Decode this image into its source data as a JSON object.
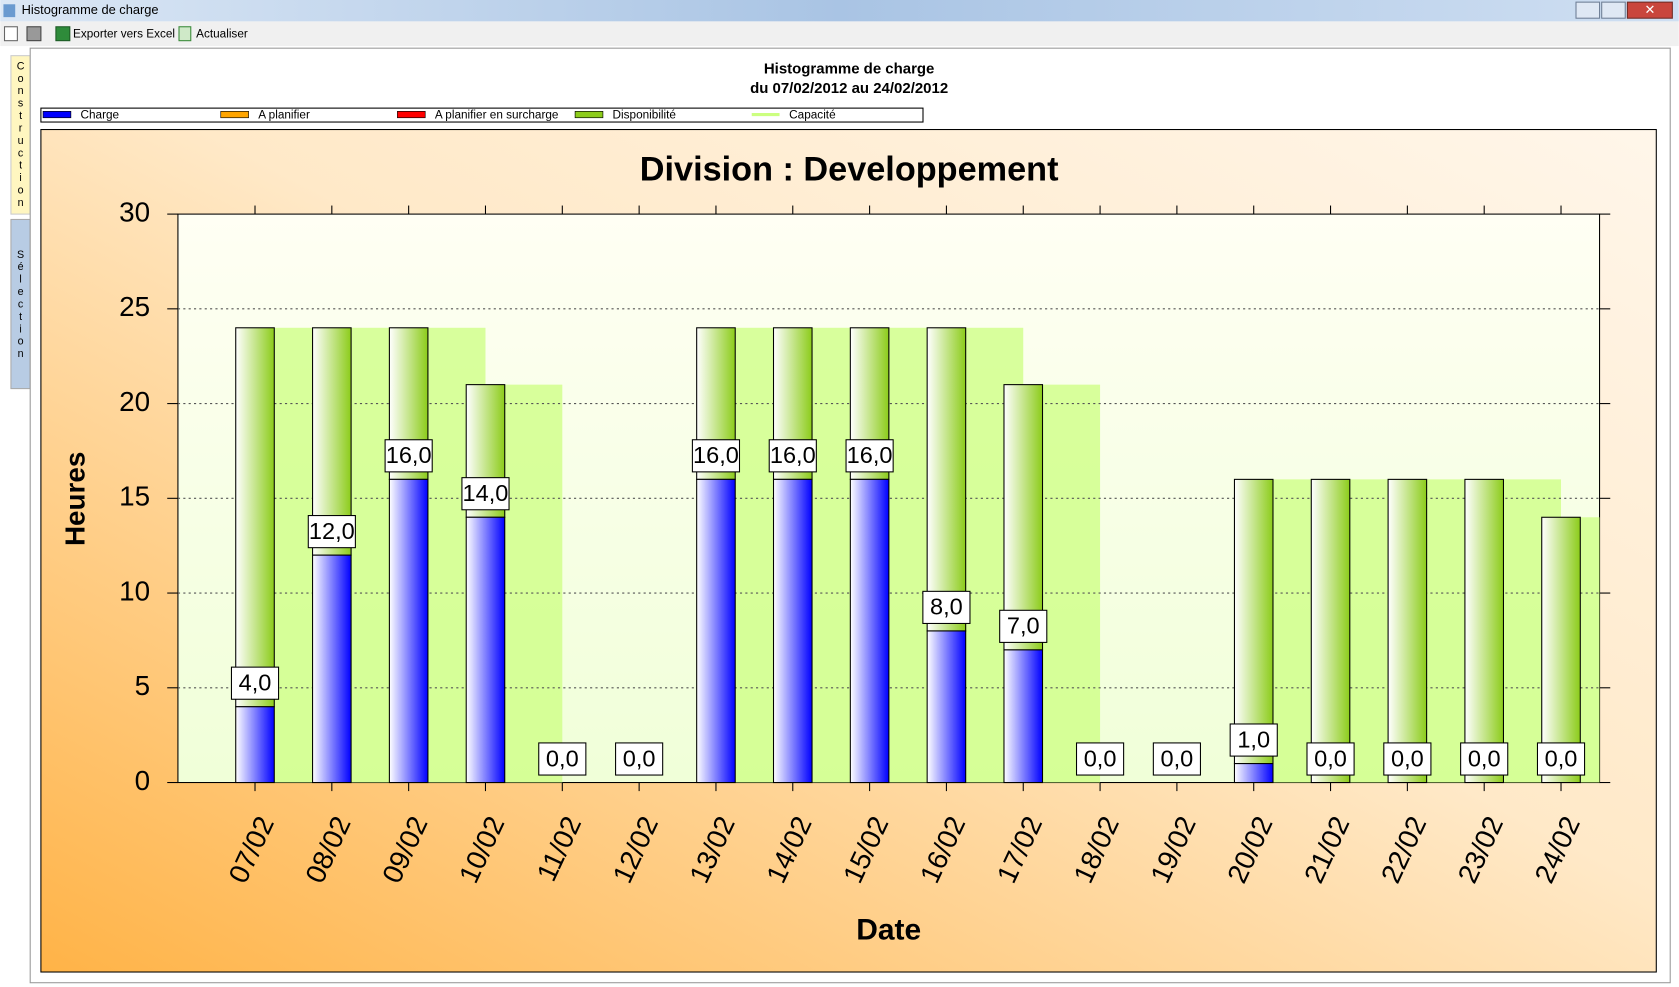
{
  "window": {
    "title": "Histogramme de charge"
  },
  "toolbar": {
    "export": "Exporter vers Excel",
    "refresh": "Actualiser"
  },
  "side_tabs": [
    "Construction",
    "Sélection"
  ],
  "header": {
    "title": "Histogramme de charge",
    "subtitle": "du 07/02/2012 au 24/02/2012"
  },
  "chart_data": {
    "type": "bar",
    "title": "Division : Developpement",
    "y_label": "Heures",
    "x_label": "Date",
    "categories": [
      "07/02",
      "08/02",
      "09/02",
      "10/02",
      "11/02",
      "12/02",
      "13/02",
      "14/02",
      "15/02",
      "16/02",
      "17/02",
      "18/02",
      "19/02",
      "20/02",
      "21/02",
      "22/02",
      "23/02",
      "24/02"
    ],
    "series": [
      {
        "name": "Charge",
        "color": "#0000ff",
        "values": [
          4,
          12,
          16,
          14,
          0,
          0,
          16,
          16,
          16,
          8,
          7,
          0,
          0,
          1,
          0,
          0,
          0,
          0
        ],
        "value_labels": [
          "4,0",
          "12,0",
          "16,0",
          "14,0",
          "0,0",
          "0,0",
          "16,0",
          "16,0",
          "16,0",
          "8,0",
          "7,0",
          "0,0",
          "0,0",
          "1,0",
          "0,0",
          "0,0",
          "0,0",
          "0,0"
        ]
      },
      {
        "name": "A planifier",
        "color": "#ffa500"
      },
      {
        "name": "A planifier en surcharge",
        "color": "#ff0000"
      },
      {
        "name": "Disponibilité",
        "color": "#8ccc1a",
        "values": [
          20,
          12,
          8,
          7,
          0,
          0,
          8,
          8,
          8,
          16,
          14,
          0,
          0,
          15,
          16,
          16,
          16,
          14
        ]
      },
      {
        "name": "Capacité",
        "color": "#ccff80",
        "values": [
          24,
          24,
          24,
          21,
          0,
          0,
          24,
          24,
          24,
          24,
          21,
          0,
          0,
          16,
          16,
          16,
          16,
          14
        ]
      }
    ],
    "ylim": [
      0,
      30
    ],
    "yticks": [
      0,
      5,
      10,
      15,
      20,
      25,
      30
    ],
    "grid": true,
    "legend": "top"
  }
}
